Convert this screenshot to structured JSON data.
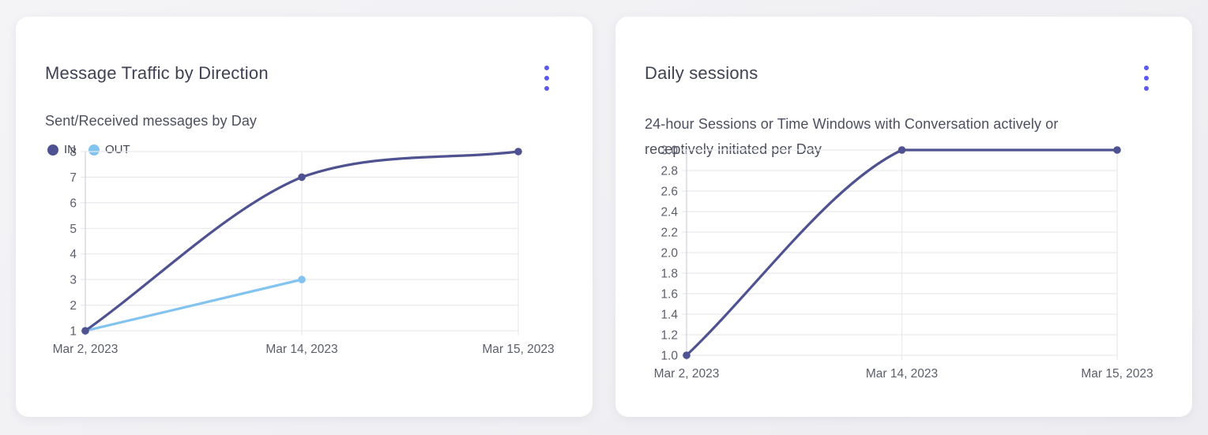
{
  "page": {
    "background_color": "#f0f0f4",
    "accent_color": "#5a5af2",
    "grid_color": "#e9e9ee",
    "axis_color": "#cfcfd8",
    "tick_text_color": "#5b5e6b"
  },
  "cards": [
    {
      "title": "Message Traffic by Direction",
      "subtitle_lines": [
        "Sent/Received messages by Day"
      ],
      "menu_icon": "kebab-menu-icon",
      "chart_data": {
        "type": "line",
        "categories": [
          "Mar 2, 2023",
          "Mar 14, 2023",
          "Mar 15, 2023"
        ],
        "series": [
          {
            "name": "IN",
            "color": "#4e5291",
            "values": [
              1,
              7,
              8
            ]
          },
          {
            "name": "OUT",
            "color": "#82c3ef",
            "values": [
              1,
              3,
              null
            ]
          }
        ],
        "ylim": [
          1,
          8
        ],
        "y_ticks": [
          "8",
          "7",
          "6",
          "5",
          "4",
          "3",
          "2",
          "1"
        ],
        "grid": true,
        "smooth": true,
        "legend_position": "top-left"
      }
    },
    {
      "title": "Daily sessions",
      "subtitle_lines": [
        "24-hour Sessions or Time Windows with Conversation actively or",
        "receptively initiated per Day"
      ],
      "menu_icon": "kebab-menu-icon",
      "chart_data": {
        "type": "line",
        "categories": [
          "Mar 2, 2023",
          "Mar 14, 2023",
          "Mar 15, 2023"
        ],
        "series": [
          {
            "name": "Daily sessions",
            "color": "#4e5291",
            "values": [
              1.0,
              3.0,
              3.0
            ]
          }
        ],
        "ylim": [
          1.0,
          3.0
        ],
        "y_ticks": [
          "3.0",
          "2.8",
          "2.6",
          "2.4",
          "2.2",
          "2.0",
          "1.8",
          "1.6",
          "1.4",
          "1.2",
          "1.0"
        ],
        "grid": true,
        "smooth": true,
        "legend_position": "none"
      }
    }
  ]
}
